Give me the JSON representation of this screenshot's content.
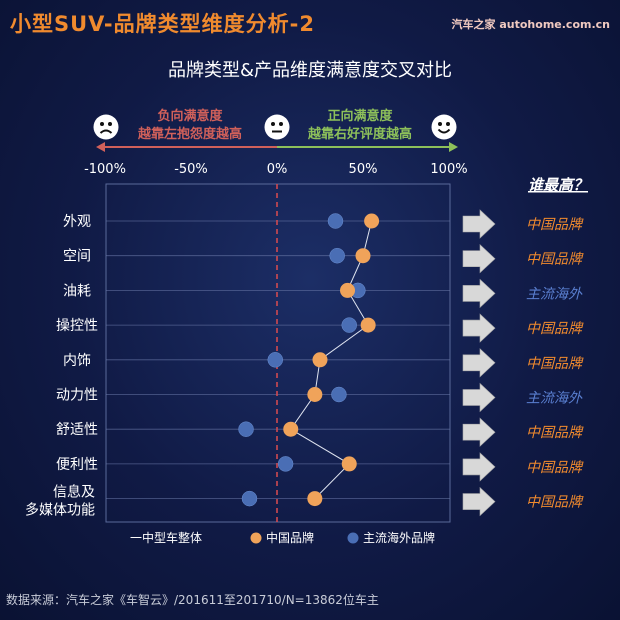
{
  "header": {
    "title": "小型SUV-品牌类型维度分析-2",
    "brand": "汽车之家 autohome.com.cn",
    "subtitle": "品牌类型&产品维度满意度交叉对比"
  },
  "legend_top": {
    "neg_line1": "负向满意度",
    "neg_line2": "越靠左抱怨度越高",
    "pos_line1": "正向满意度",
    "pos_line2": "越靠右好评度越高"
  },
  "right_column": {
    "heading": "谁最高？",
    "winners": [
      "中国品牌",
      "中国品牌",
      "主流海外",
      "中国品牌",
      "中国品牌",
      "主流海外",
      "中国品牌",
      "中国品牌",
      "中国品牌"
    ]
  },
  "footer": "数据来源：汽车之家《车智云》/201611至201710/N=13862位车主",
  "colors": {
    "china": "#f0a35a",
    "foreign": "#4a6eb5",
    "line": "#ffffff",
    "neg": "#d0605a",
    "pos": "#8dc05a",
    "winner_china": "#f08a2e",
    "winner_foreign": "#5a7fd0"
  },
  "chart_data": {
    "type": "scatter",
    "categories": [
      "外观",
      "空间",
      "油耗",
      "操控性",
      "内饰",
      "动力性",
      "舒适性",
      "便利性",
      "信息及\n多媒体功能"
    ],
    "x_ticks": [
      "-100%",
      "-50%",
      "0%",
      "50%",
      "100%"
    ],
    "xlim": [
      -100,
      100
    ],
    "series": [
      {
        "name": "一中型车整体",
        "key": "overall"
      },
      {
        "name": "中国品牌",
        "key": "china",
        "values": [
          55,
          50,
          41,
          53,
          25,
          22,
          8,
          42,
          22
        ]
      },
      {
        "name": "主流海外品牌",
        "key": "foreign",
        "values": [
          34,
          35,
          47,
          42,
          -1,
          36,
          -18,
          5,
          -16
        ]
      }
    ]
  }
}
